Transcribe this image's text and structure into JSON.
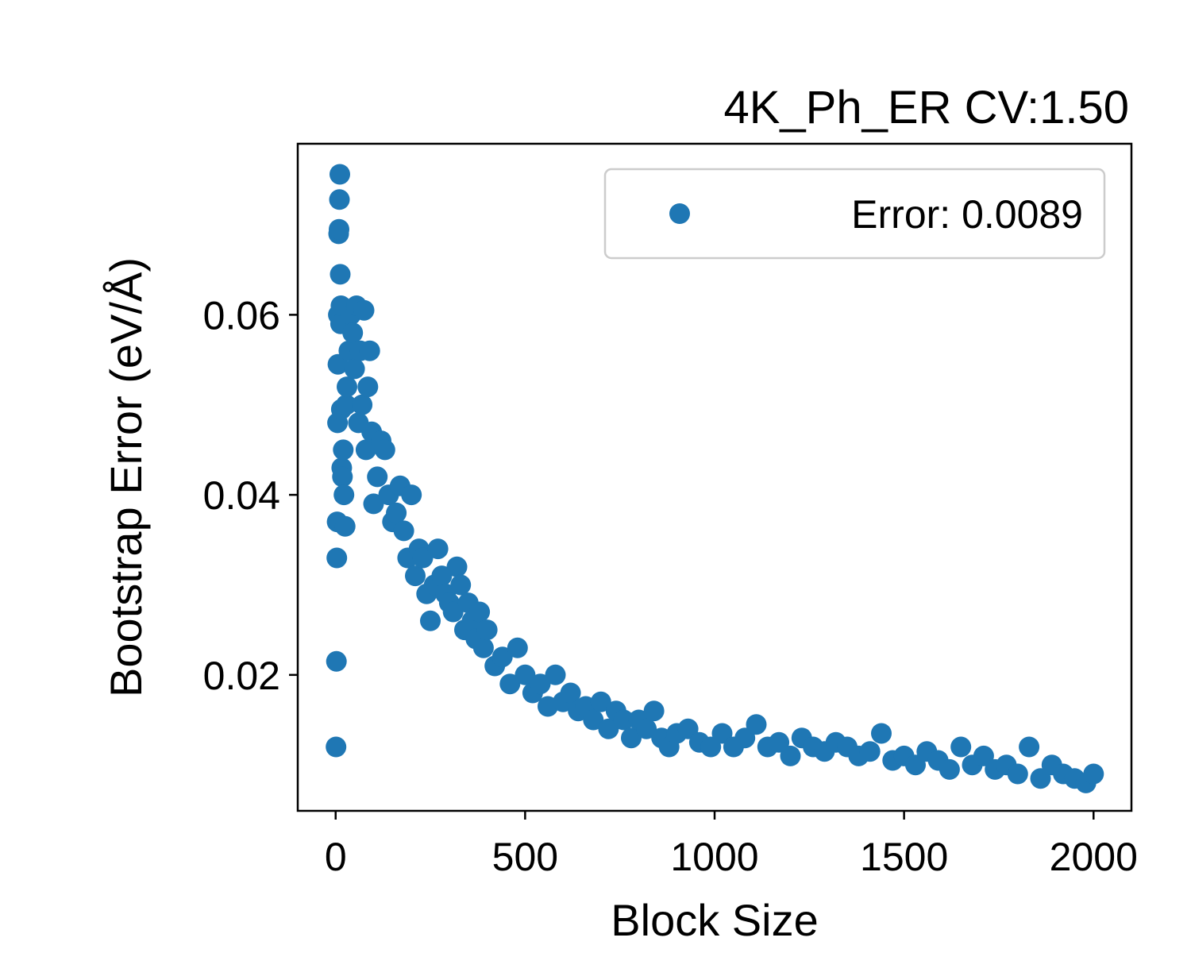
{
  "chart_data": {
    "type": "scatter",
    "title": "4K_Ph_ER CV:1.50",
    "xlabel": "Block Size",
    "ylabel": "Bootstrap Error (eV/Å)",
    "xlim": [
      -100,
      2100
    ],
    "ylim": [
      0.0049,
      0.079
    ],
    "xticks": [
      0,
      500,
      1000,
      1500,
      2000
    ],
    "xtick_labels": [
      "0",
      "500",
      "1000",
      "1500",
      "2000"
    ],
    "yticks": [
      0.02,
      0.04,
      0.06
    ],
    "ytick_labels": [
      "0.02",
      "0.04",
      "0.06"
    ],
    "grid": false,
    "legend_position": "upper right",
    "series": [
      {
        "name": "Error: 0.0089",
        "color": "#1f77b4",
        "x": [
          1,
          2,
          3,
          4,
          5,
          6,
          7,
          8,
          9,
          10,
          11,
          12,
          13,
          14,
          15,
          16,
          18,
          20,
          22,
          25,
          28,
          30,
          35,
          40,
          45,
          50,
          55,
          60,
          65,
          70,
          75,
          80,
          85,
          90,
          95,
          100,
          110,
          120,
          130,
          140,
          150,
          160,
          170,
          180,
          190,
          200,
          210,
          220,
          230,
          240,
          250,
          260,
          270,
          280,
          290,
          300,
          310,
          320,
          330,
          340,
          350,
          360,
          370,
          380,
          390,
          400,
          420,
          440,
          460,
          480,
          500,
          520,
          540,
          560,
          580,
          600,
          620,
          640,
          660,
          680,
          700,
          720,
          740,
          760,
          780,
          800,
          820,
          840,
          860,
          880,
          900,
          930,
          960,
          990,
          1020,
          1050,
          1080,
          1110,
          1140,
          1170,
          1200,
          1230,
          1260,
          1290,
          1320,
          1350,
          1380,
          1410,
          1440,
          1470,
          1500,
          1530,
          1560,
          1590,
          1620,
          1650,
          1680,
          1710,
          1740,
          1770,
          1800,
          1830,
          1860,
          1890,
          1920,
          1950,
          1980,
          2000
        ],
        "y": [
          0.012,
          0.0215,
          0.033,
          0.037,
          0.048,
          0.0545,
          0.06,
          0.069,
          0.0695,
          0.0728,
          0.0756,
          0.0645,
          0.059,
          0.061,
          0.0495,
          0.043,
          0.042,
          0.045,
          0.04,
          0.0365,
          0.05,
          0.052,
          0.056,
          0.06,
          0.058,
          0.054,
          0.061,
          0.048,
          0.056,
          0.05,
          0.0605,
          0.045,
          0.052,
          0.056,
          0.047,
          0.039,
          0.042,
          0.046,
          0.045,
          0.04,
          0.037,
          0.038,
          0.041,
          0.036,
          0.033,
          0.04,
          0.031,
          0.034,
          0.033,
          0.029,
          0.026,
          0.03,
          0.034,
          0.031,
          0.029,
          0.028,
          0.027,
          0.032,
          0.03,
          0.025,
          0.028,
          0.026,
          0.024,
          0.027,
          0.023,
          0.025,
          0.021,
          0.022,
          0.019,
          0.023,
          0.02,
          0.018,
          0.019,
          0.0165,
          0.02,
          0.017,
          0.018,
          0.016,
          0.0165,
          0.015,
          0.017,
          0.014,
          0.016,
          0.015,
          0.013,
          0.015,
          0.014,
          0.016,
          0.013,
          0.012,
          0.0135,
          0.014,
          0.0125,
          0.012,
          0.0135,
          0.012,
          0.013,
          0.0145,
          0.012,
          0.0125,
          0.011,
          0.013,
          0.012,
          0.0115,
          0.0125,
          0.012,
          0.011,
          0.0115,
          0.0135,
          0.0105,
          0.011,
          0.01,
          0.0115,
          0.0105,
          0.0095,
          0.012,
          0.01,
          0.011,
          0.0095,
          0.01,
          0.009,
          0.012,
          0.0085,
          0.01,
          0.009,
          0.0085,
          0.008,
          0.009
        ]
      }
    ]
  }
}
